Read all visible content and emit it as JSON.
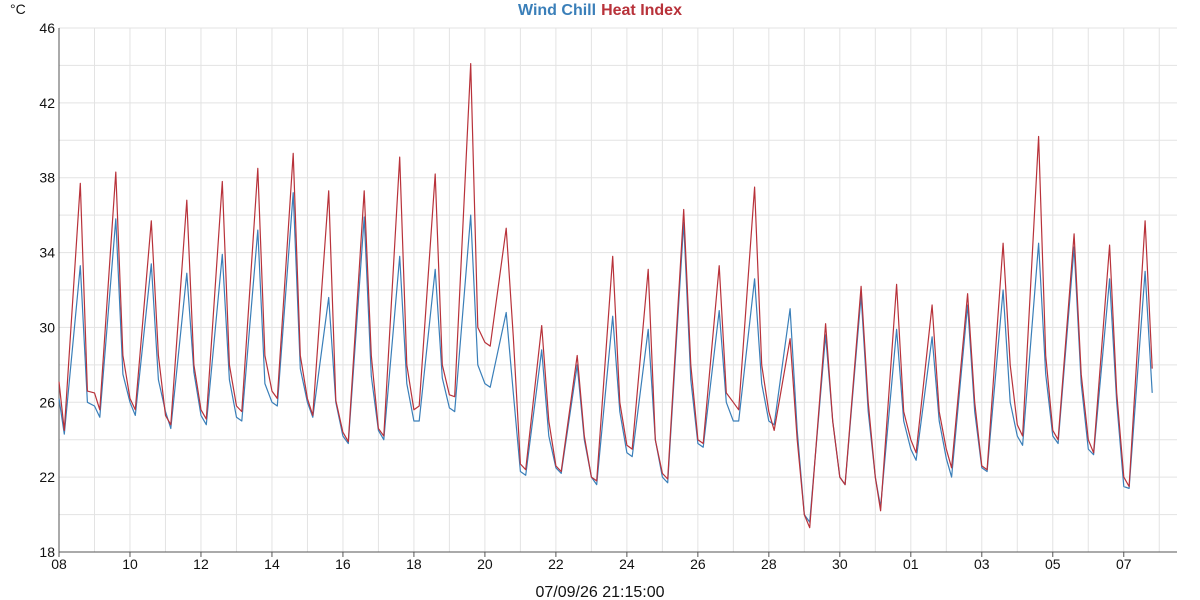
{
  "title": {
    "parts": [
      {
        "text": "Wind Chill",
        "color": "#3a7fb9"
      },
      {
        "text": "Heat Index",
        "color": "#b8323a"
      }
    ]
  },
  "footer": {
    "timestamp": "07/09/26 21:15:00"
  },
  "chart_data": {
    "type": "line",
    "ylabel": "°C",
    "ylim": [
      18,
      46
    ],
    "yticks": [
      18,
      22,
      26,
      30,
      34,
      38,
      42,
      46
    ],
    "xlim": [
      0,
      31.5
    ],
    "xticks": [
      {
        "day": 0,
        "label": "08"
      },
      {
        "day": 2,
        "label": "10"
      },
      {
        "day": 4,
        "label": "12"
      },
      {
        "day": 6,
        "label": "14"
      },
      {
        "day": 8,
        "label": "16"
      },
      {
        "day": 10,
        "label": "18"
      },
      {
        "day": 12,
        "label": "20"
      },
      {
        "day": 14,
        "label": "22"
      },
      {
        "day": 16,
        "label": "24"
      },
      {
        "day": 18,
        "label": "26"
      },
      {
        "day": 20,
        "label": "28"
      },
      {
        "day": 22,
        "label": "30"
      },
      {
        "day": 24,
        "label": "01"
      },
      {
        "day": 26,
        "label": "03"
      },
      {
        "day": 28,
        "label": "05"
      },
      {
        "day": 30,
        "label": "07"
      }
    ],
    "grid": true,
    "series": [
      {
        "name": "Wind Chill",
        "color": "#3a7fb9",
        "daily": [
          [
            26.2,
            24.3,
            33.3,
            26.0
          ],
          [
            25.8,
            25.2,
            35.8,
            27.5
          ],
          [
            26.0,
            25.3,
            33.4,
            27.2
          ],
          [
            25.5,
            24.6,
            32.9,
            27.6
          ],
          [
            25.3,
            24.8,
            33.9,
            27.2
          ],
          [
            25.2,
            25.0,
            35.2,
            27.0
          ],
          [
            26.0,
            25.8,
            37.2,
            27.8
          ],
          [
            26.0,
            25.2,
            31.6,
            26.0
          ],
          [
            24.2,
            23.8,
            35.9,
            27.4
          ],
          [
            24.5,
            24.0,
            33.8,
            27.0
          ],
          [
            25.0,
            25.0,
            33.1,
            27.3
          ],
          [
            25.7,
            25.5,
            36.0,
            28.0
          ],
          [
            27.0,
            26.8,
            30.8,
            26.5
          ],
          [
            22.3,
            22.1,
            28.8,
            24.2
          ],
          [
            22.5,
            22.2,
            28.0,
            24.0
          ],
          [
            22.0,
            21.6,
            30.6,
            25.5
          ],
          [
            23.3,
            23.1,
            29.9,
            24.0
          ],
          [
            22.0,
            21.7,
            35.6,
            27.2
          ],
          [
            23.8,
            23.6,
            30.9,
            26.0
          ],
          [
            25.0,
            25.0,
            32.6,
            27.0
          ],
          [
            25.0,
            24.8,
            31.0,
            24.5
          ],
          [
            20.0,
            19.6,
            29.6,
            25.0
          ],
          [
            22.0,
            21.6,
            31.7,
            25.5
          ],
          [
            22.0,
            20.4,
            29.9,
            25.0
          ],
          [
            23.5,
            22.9,
            29.5,
            25.0
          ],
          [
            23.0,
            22.0,
            31.2,
            25.5
          ],
          [
            22.5,
            22.3,
            32.0,
            26.0
          ],
          [
            24.2,
            23.7,
            34.5,
            27.5
          ],
          [
            24.2,
            23.8,
            34.3,
            27.0
          ],
          [
            23.5,
            23.2,
            32.6,
            26.0
          ],
          [
            21.5,
            21.4,
            33.0,
            26.5
          ]
        ]
      },
      {
        "name": "Heat Index",
        "color": "#b8323a",
        "daily": [
          [
            27.1,
            24.5,
            37.7,
            26.6
          ],
          [
            26.5,
            25.6,
            38.3,
            28.5
          ],
          [
            26.2,
            25.6,
            35.7,
            28.5
          ],
          [
            25.3,
            24.8,
            36.8,
            28.0
          ],
          [
            25.6,
            25.1,
            37.8,
            28.0
          ],
          [
            25.8,
            25.5,
            38.5,
            28.5
          ],
          [
            26.6,
            26.2,
            39.3,
            28.5
          ],
          [
            26.2,
            25.3,
            37.3,
            26.1
          ],
          [
            24.4,
            23.9,
            37.3,
            28.5
          ],
          [
            24.6,
            24.2,
            39.1,
            28.0
          ],
          [
            25.6,
            25.8,
            38.2,
            28.0
          ],
          [
            26.4,
            26.3,
            44.1,
            30.0
          ],
          [
            29.2,
            29.0,
            35.3,
            29.5
          ],
          [
            22.7,
            22.4,
            30.1,
            25.0
          ],
          [
            22.6,
            22.3,
            28.5,
            24.2
          ],
          [
            22.0,
            21.8,
            33.8,
            26.0
          ],
          [
            23.7,
            23.5,
            33.1,
            24.0
          ],
          [
            22.2,
            21.9,
            36.3,
            28.0
          ],
          [
            24.0,
            23.8,
            33.3,
            26.5
          ],
          [
            26.0,
            25.6,
            37.5,
            28.0
          ],
          [
            25.5,
            24.5,
            29.4,
            24.0
          ],
          [
            20.0,
            19.3,
            30.2,
            25.0
          ],
          [
            22.0,
            21.6,
            32.2,
            26.0
          ],
          [
            22.0,
            20.2,
            32.3,
            25.5
          ],
          [
            24.0,
            23.3,
            31.2,
            25.5
          ],
          [
            23.5,
            22.5,
            31.8,
            26.0
          ],
          [
            22.6,
            22.4,
            34.5,
            28.0
          ],
          [
            24.8,
            24.2,
            40.2,
            28.5
          ],
          [
            24.5,
            24.0,
            35.0,
            27.5
          ],
          [
            24.0,
            23.3,
            34.4,
            26.5
          ],
          [
            22.0,
            21.5,
            35.7,
            27.8
          ]
        ]
      }
    ]
  }
}
